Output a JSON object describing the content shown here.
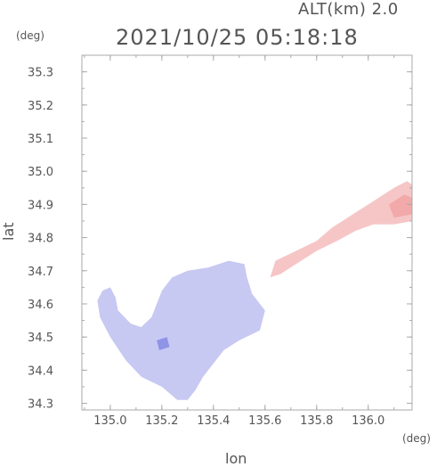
{
  "header": {
    "altitude_label": "ALT(km)  2.0",
    "timestamp": "2021/10/25 05:18:18"
  },
  "axes": {
    "y_unit": "(deg)",
    "x_unit": "(deg)",
    "y_title": "lat",
    "x_title": "lon"
  },
  "chart_data": {
    "type": "heatmap",
    "title": "2021/10/25 05:18:18",
    "subtitle": "ALT(km)  2.0",
    "xlabel": "lon",
    "ylabel": "lat",
    "xlim": [
      134.89,
      136.17
    ],
    "ylim": [
      34.28,
      35.35
    ],
    "x_ticks": [
      135.0,
      135.2,
      135.4,
      135.6,
      135.8,
      136.0
    ],
    "x_tick_labels": [
      "135.0",
      "135.2",
      "135.4",
      "135.6",
      "135.8",
      "136.0"
    ],
    "y_ticks": [
      34.3,
      34.4,
      34.5,
      34.6,
      34.7,
      34.8,
      34.9,
      35.0,
      35.1,
      35.2,
      35.3
    ],
    "y_tick_labels": [
      "34.3",
      "34.4",
      "34.5",
      "34.6",
      "34.7",
      "34.8",
      "34.9",
      "35.0",
      "35.1",
      "35.2",
      "35.3"
    ],
    "grid": false,
    "colors": {
      "negative": "#c7c9f2",
      "negative_strong": "#8f94e6",
      "positive": "#f6c6c6",
      "positive_strong": "#f2a9a9",
      "frame": "#aaaaaa"
    },
    "regions": [
      {
        "name": "",
        "sign": "negative",
        "polygon": [
          [
            134.97,
            34.64
          ],
          [
            135.0,
            34.65
          ],
          [
            135.02,
            34.62
          ],
          [
            135.03,
            34.58
          ],
          [
            135.08,
            34.54
          ],
          [
            135.12,
            34.53
          ],
          [
            135.16,
            34.56
          ],
          [
            135.18,
            34.6
          ],
          [
            135.2,
            34.64
          ],
          [
            135.24,
            34.68
          ],
          [
            135.3,
            34.7
          ],
          [
            135.38,
            34.71
          ],
          [
            135.46,
            34.73
          ],
          [
            135.52,
            34.72
          ],
          [
            135.53,
            34.68
          ],
          [
            135.55,
            34.63
          ],
          [
            135.6,
            34.58
          ],
          [
            135.58,
            34.52
          ],
          [
            135.5,
            34.49
          ],
          [
            135.44,
            34.46
          ],
          [
            135.4,
            34.42
          ],
          [
            135.36,
            34.38
          ],
          [
            135.33,
            34.34
          ],
          [
            135.3,
            34.31
          ],
          [
            135.26,
            34.31
          ],
          [
            135.2,
            34.35
          ],
          [
            135.12,
            34.38
          ],
          [
            135.06,
            34.43
          ],
          [
            135.0,
            34.5
          ],
          [
            134.96,
            34.56
          ],
          [
            134.95,
            34.61
          ]
        ]
      },
      {
        "name": "",
        "sign": "negative_strong",
        "polygon": [
          [
            135.18,
            34.49
          ],
          [
            135.22,
            34.5
          ],
          [
            135.23,
            34.47
          ],
          [
            135.19,
            34.46
          ]
        ]
      },
      {
        "name": "",
        "sign": "positive",
        "polygon": [
          [
            135.64,
            34.73
          ],
          [
            135.72,
            34.76
          ],
          [
            135.8,
            34.79
          ],
          [
            135.86,
            34.83
          ],
          [
            135.94,
            34.87
          ],
          [
            136.02,
            34.91
          ],
          [
            136.1,
            34.95
          ],
          [
            136.15,
            34.97
          ],
          [
            136.17,
            34.96
          ],
          [
            136.17,
            34.85
          ],
          [
            136.1,
            34.84
          ],
          [
            136.02,
            34.84
          ],
          [
            135.95,
            34.82
          ],
          [
            135.88,
            34.79
          ],
          [
            135.8,
            34.76
          ],
          [
            135.72,
            34.72
          ],
          [
            135.66,
            34.69
          ],
          [
            135.62,
            34.68
          ]
        ]
      },
      {
        "name": "",
        "sign": "positive_strong",
        "polygon": [
          [
            136.08,
            34.9
          ],
          [
            136.14,
            34.93
          ],
          [
            136.17,
            34.92
          ],
          [
            136.17,
            34.87
          ],
          [
            136.1,
            34.86
          ]
        ]
      }
    ]
  }
}
